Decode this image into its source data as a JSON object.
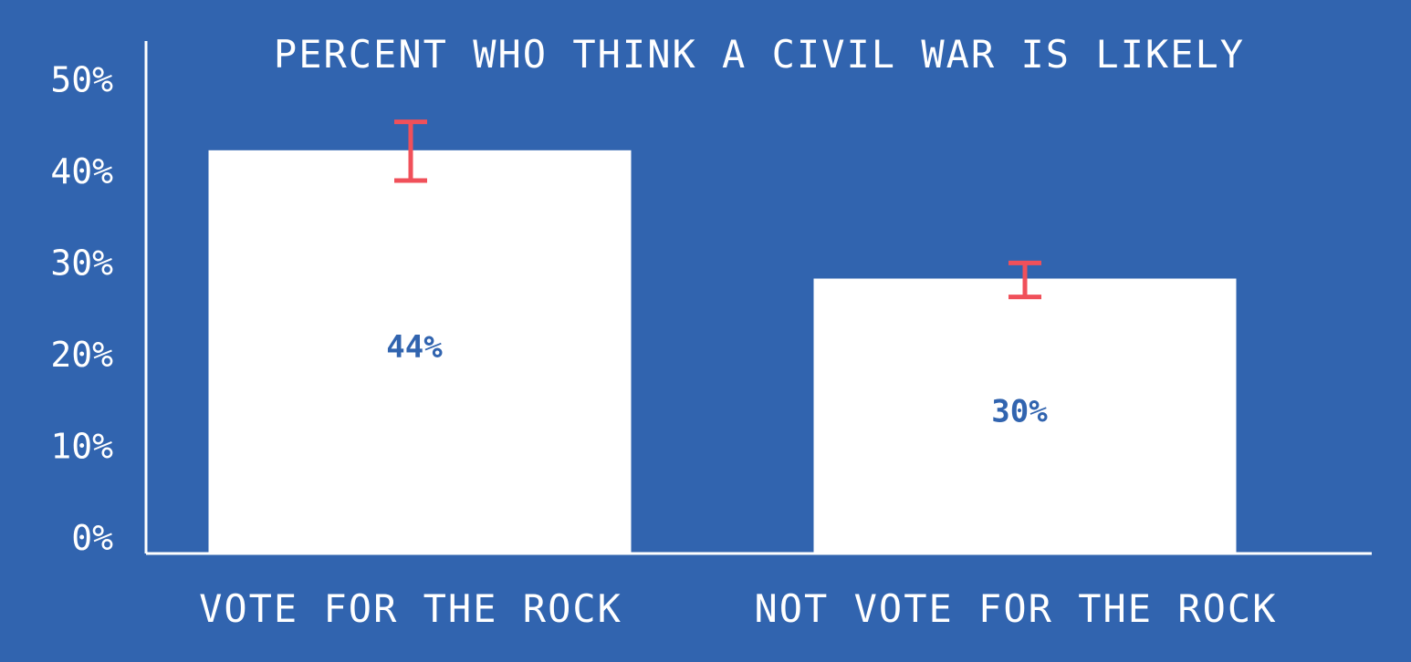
{
  "chart_data": {
    "type": "bar",
    "title": "PERCENT WHO THINK A CIVIL WAR IS LIKELY",
    "xlabel": "",
    "ylabel": "",
    "categories": [
      "VOTE FOR THE ROCK",
      "NOT VOTE FOR THE ROCK"
    ],
    "values": [
      44,
      30
    ],
    "data_labels": [
      "44%",
      "30%"
    ],
    "error_bars": [
      {
        "low": 40.7,
        "high": 47.1
      },
      {
        "low": 28.0,
        "high": 31.7
      }
    ],
    "ylim": [
      0,
      50
    ],
    "yticks": [
      0,
      10,
      20,
      30,
      40,
      50
    ],
    "ytick_labels": [
      "0%",
      "10%",
      "20%",
      "30%",
      "40%",
      "50%"
    ],
    "grid": false,
    "legend": "none",
    "colors": {
      "background": "#3164AF",
      "bar": "#FFFFFF",
      "error_bar": "#F0505A",
      "data_label": "#3164AF",
      "text": "#FFFFFF"
    }
  }
}
